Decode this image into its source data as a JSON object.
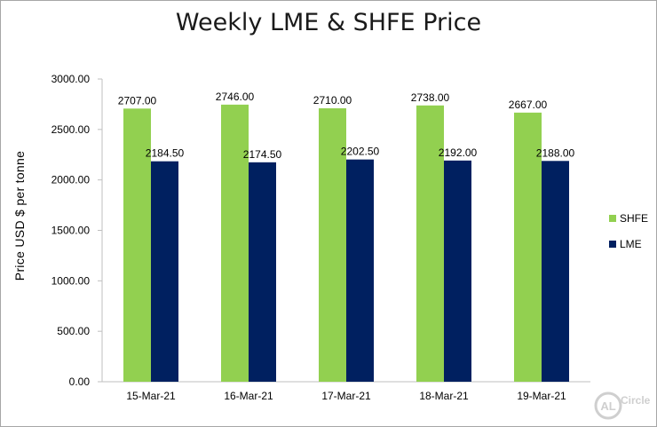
{
  "chart_data": {
    "type": "bar",
    "title": "Weekly LME & SHFE Price",
    "ylabel": "Price  USD  $  per  tonne",
    "xlabel": "",
    "categories": [
      "15-Mar-21",
      "16-Mar-21",
      "17-Mar-21",
      "18-Mar-21",
      "19-Mar-21"
    ],
    "series": [
      {
        "name": "SHFE",
        "values": [
          2707.0,
          2746.0,
          2710.0,
          2738.0,
          2667.0
        ],
        "color": "#92d050"
      },
      {
        "name": "LME",
        "values": [
          2184.5,
          2174.5,
          2202.5,
          2192.0,
          2188.0
        ],
        "color": "#002060"
      }
    ],
    "ylim": [
      0,
      3000
    ],
    "yticks": [
      0,
      500,
      1000,
      1500,
      2000,
      2500,
      3000
    ],
    "tick_decimals": 2,
    "grid": false,
    "legend_position": "right"
  },
  "logo": {
    "text": "Circle",
    "mark": "AL"
  }
}
